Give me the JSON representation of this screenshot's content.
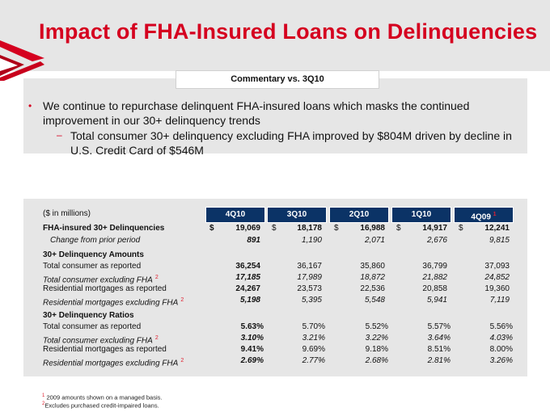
{
  "title": "Impact of FHA-Insured Loans on Delinquencies",
  "commentary": {
    "header": "Commentary vs. 3Q10",
    "bullet": "We continue to repurchase delinquent FHA-insured loans which masks the continued improvement in our 30+ delinquency trends",
    "sub_bullet": "Total consumer 30+ delinquency excluding FHA improved by $804M driven by decline in U.S. Credit Card of $546M"
  },
  "table": {
    "units_label": "($ in millions)",
    "columns": [
      {
        "label": "4Q10",
        "footnote": ""
      },
      {
        "label": "3Q10",
        "footnote": ""
      },
      {
        "label": "2Q10",
        "footnote": ""
      },
      {
        "label": "1Q10",
        "footnote": ""
      },
      {
        "label": "4Q09",
        "footnote": "1"
      }
    ],
    "rows": [
      {
        "label": "FHA-insured 30+ Delinquencies",
        "style": "bold",
        "dollar": "$",
        "values": [
          "19,069",
          "18,178",
          "16,988",
          "14,917",
          "12,241"
        ],
        "footnote": ""
      },
      {
        "label": "Change from prior period",
        "style": "italic-indent",
        "values": [
          "891",
          "1,190",
          "2,071",
          "2,676",
          "9,815"
        ],
        "footnote": ""
      },
      {
        "label": "30+ Delinquency Amounts",
        "style": "section",
        "values": [],
        "footnote": ""
      },
      {
        "label": "Total consumer as reported",
        "style": "normal",
        "values": [
          "36,254",
          "36,167",
          "35,860",
          "36,799",
          "37,093"
        ],
        "footnote": ""
      },
      {
        "label": "Total consumer excluding FHA",
        "style": "italic",
        "values": [
          "17,185",
          "17,989",
          "18,872",
          "21,882",
          "24,852"
        ],
        "footnote": "2"
      },
      {
        "label": "Residential mortgages as reported",
        "style": "normal",
        "values": [
          "24,267",
          "23,573",
          "22,536",
          "20,858",
          "19,360"
        ],
        "footnote": ""
      },
      {
        "label": "Residential mortgages excluding FHA",
        "style": "italic",
        "values": [
          "5,198",
          "5,395",
          "5,548",
          "5,941",
          "7,119"
        ],
        "footnote": "2"
      },
      {
        "label": "30+ Delinquency Ratios",
        "style": "section",
        "values": [],
        "footnote": ""
      },
      {
        "label": "Total consumer as reported",
        "style": "normal",
        "values": [
          "5.63%",
          "5.70%",
          "5.52%",
          "5.57%",
          "5.56%"
        ],
        "footnote": ""
      },
      {
        "label": "Total consumer excluding FHA",
        "style": "italic",
        "values": [
          "3.10%",
          "3.21%",
          "3.22%",
          "3.64%",
          "4.03%"
        ],
        "footnote": "2"
      },
      {
        "label": "Residential mortgages as reported",
        "style": "normal",
        "values": [
          "9.41%",
          "9.69%",
          "9.18%",
          "8.51%",
          "8.00%"
        ],
        "footnote": ""
      },
      {
        "label": "Residential mortgages excluding FHA",
        "style": "italic",
        "values": [
          "2.69%",
          "2.77%",
          "2.68%",
          "2.81%",
          "3.26%"
        ],
        "footnote": "2"
      }
    ]
  },
  "footnotes": [
    {
      "mark": "1",
      "text": "2009 amounts shown on a managed basis."
    },
    {
      "mark": "2",
      "text": "Excludes purchased credit-impaired loans."
    }
  ],
  "colors": {
    "accent": "#d5001f",
    "header_fill": "#0b3366",
    "panel": "#e6e6e6"
  }
}
